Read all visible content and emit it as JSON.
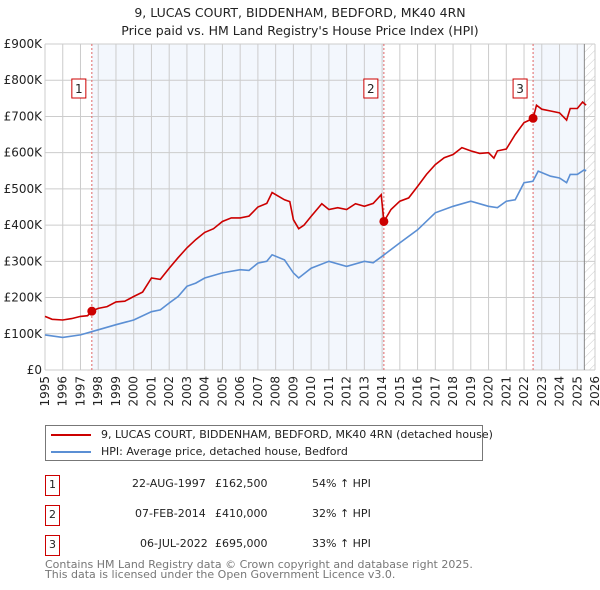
{
  "chart_data": {
    "type": "line",
    "title": "9, LUCAS COURT, BIDDENHAM, BEDFORD, MK40 4RN",
    "subtitle": "Price paid vs. HM Land Registry's House Price Index (HPI)",
    "xlim": [
      1995,
      2026
    ],
    "ylim": [
      0,
      900000
    ],
    "x_ticks": [
      "1995",
      "1996",
      "1997",
      "1998",
      "1999",
      "2000",
      "2001",
      "2002",
      "2003",
      "2004",
      "2005",
      "2006",
      "2007",
      "2008",
      "2009",
      "2010",
      "2011",
      "2012",
      "2013",
      "2014",
      "2015",
      "2016",
      "2017",
      "2018",
      "2019",
      "2020",
      "2021",
      "2022",
      "2023",
      "2024",
      "2025",
      "2026"
    ],
    "y_ticks": [
      {
        "v": 0,
        "label": "£0"
      },
      {
        "v": 100000,
        "label": "£100K"
      },
      {
        "v": 200000,
        "label": "£200K"
      },
      {
        "v": 300000,
        "label": "£300K"
      },
      {
        "v": 400000,
        "label": "£400K"
      },
      {
        "v": 500000,
        "label": "£500K"
      },
      {
        "v": 600000,
        "label": "£600K"
      },
      {
        "v": 700000,
        "label": "£700K"
      },
      {
        "v": 800000,
        "label": "£800K"
      },
      {
        "v": 900000,
        "label": "£900K"
      }
    ],
    "grid": true,
    "series": [
      {
        "name": "9, LUCAS COURT, BIDDENHAM, BEDFORD, MK40 4RN (detached house)",
        "color": "#cc0000",
        "x": [
          1995,
          1995.4,
          1996,
          1996.5,
          1997,
          1997.4,
          1997.64,
          1998,
          1998.5,
          1999,
          1999.5,
          2000,
          2000.5,
          2001,
          2001.5,
          2002,
          2002.5,
          2003,
          2003.5,
          2004,
          2004.5,
          2005,
          2005.5,
          2006,
          2006.5,
          2007,
          2007.5,
          2007.8,
          2008.5,
          2008.8,
          2009,
          2009.3,
          2009.6,
          2010,
          2010.6,
          2011,
          2011.5,
          2012,
          2012.5,
          2013,
          2013.5,
          2013.95,
          2014.1,
          2014.5,
          2015,
          2015.5,
          2016,
          2016.5,
          2017,
          2017.5,
          2018,
          2018.5,
          2019,
          2019.5,
          2020,
          2020.3,
          2020.5,
          2021,
          2021.5,
          2022,
          2022.3,
          2022.51,
          2022.7,
          2023,
          2023.5,
          2024,
          2024.4,
          2024.6,
          2025,
          2025.3,
          2025.5
        ],
        "y": [
          148000,
          140000,
          138000,
          142000,
          148000,
          150000,
          162500,
          170000,
          175000,
          188000,
          190000,
          203000,
          215000,
          254000,
          250000,
          281000,
          310000,
          337000,
          360000,
          380000,
          390000,
          410000,
          420000,
          420000,
          425000,
          450000,
          460000,
          490000,
          470000,
          465000,
          415000,
          390000,
          400000,
          424000,
          459000,
          443000,
          448000,
          443000,
          459000,
          452000,
          460000,
          484000,
          410000,
          443000,
          466000,
          475000,
          507000,
          540000,
          567000,
          586000,
          595000,
          614000,
          605000,
          598000,
          600000,
          585000,
          605000,
          610000,
          650000,
          683000,
          690000,
          695000,
          731000,
          720000,
          715000,
          710000,
          690000,
          722000,
          722000,
          740000,
          731000
        ]
      },
      {
        "name": "HPI: Average price, detached house, Bedford",
        "color": "#5b8fd4",
        "x": [
          1995,
          1996,
          1997,
          1998,
          1999,
          2000,
          2001,
          2001.5,
          2002,
          2002.5,
          2003,
          2003.5,
          2004,
          2005,
          2006,
          2006.5,
          2007,
          2007.5,
          2007.8,
          2008.5,
          2009,
          2009.3,
          2010,
          2011,
          2012,
          2013,
          2013.5,
          2014,
          2015,
          2016,
          2017,
          2018,
          2019,
          2020,
          2020.5,
          2021,
          2021.5,
          2022,
          2022.5,
          2022.8,
          2023.5,
          2024,
          2024.4,
          2024.6,
          2025,
          2025.4,
          2025.5
        ],
        "y": [
          97000,
          90000,
          97000,
          111000,
          125000,
          138000,
          161000,
          166000,
          185000,
          203000,
          231000,
          240000,
          254000,
          268000,
          277000,
          275000,
          295000,
          300000,
          318000,
          304000,
          268000,
          254000,
          281000,
          300000,
          286000,
          300000,
          296000,
          314000,
          351000,
          387000,
          434000,
          452000,
          466000,
          452000,
          448000,
          466000,
          470000,
          517000,
          521000,
          549000,
          535000,
          530000,
          517000,
          540000,
          540000,
          553000,
          549000
        ]
      }
    ],
    "sales": [
      {
        "id": "1",
        "x": 1997.64,
        "price": 162500,
        "date": "22-AUG-1997",
        "price_label": "£162,500",
        "hpi": "54% ↑ HPI"
      },
      {
        "id": "2",
        "x": 2014.1,
        "price": 410000,
        "date": "07-FEB-2014",
        "price_label": "£410,000",
        "hpi": "32% ↑ HPI"
      },
      {
        "id": "3",
        "x": 2022.51,
        "price": 695000,
        "date": "06-JUL-2022",
        "price_label": "£695,000",
        "hpi": "33% ↑ HPI"
      }
    ],
    "projection_start": 2025.4,
    "legend_placement": "below"
  },
  "footer": {
    "line1": "Contains HM Land Registry data © Crown copyright and database right 2025.",
    "line2": "This data is licensed under the Open Government Licence v3.0."
  }
}
